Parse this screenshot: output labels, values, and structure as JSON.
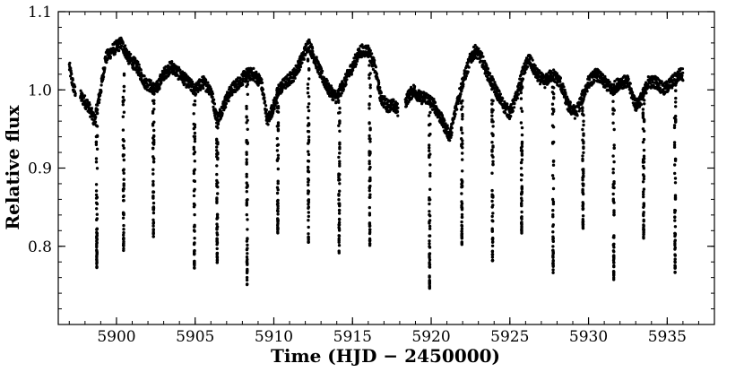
{
  "chart_data": {
    "type": "scatter",
    "title": "",
    "xlabel": "Time (HJD − 2450000)",
    "ylabel": "Relative flux",
    "xlim": [
      5896.3,
      5938.0
    ],
    "ylim": [
      0.7,
      1.1
    ],
    "x_ticks": [
      5900,
      5905,
      5910,
      5915,
      5920,
      5925,
      5930,
      5935
    ],
    "x_tick_labels": [
      "5900",
      "5905",
      "5910",
      "5915",
      "5920",
      "5925",
      "5930",
      "5935"
    ],
    "y_ticks": [
      0.8,
      0.9,
      1.0,
      1.1
    ],
    "y_tick_labels": [
      "0.8",
      "0.9",
      "1.0",
      "1.1"
    ],
    "grid": false,
    "marker_color": "#000000",
    "series": [
      {
        "baseline": [
          [
            5897.0,
            1.03
          ],
          [
            5897.3,
            1.0
          ],
          [
            5897.8,
            0.99
          ],
          [
            5898.2,
            0.98
          ],
          [
            5898.6,
            0.96
          ],
          [
            5899.0,
            1.0
          ],
          [
            5899.3,
            1.04
          ],
          [
            5899.7,
            1.05
          ],
          [
            5900.3,
            1.06
          ],
          [
            5900.8,
            1.04
          ],
          [
            5901.3,
            1.03
          ],
          [
            5901.8,
            1.01
          ],
          [
            5902.5,
            1.0
          ],
          [
            5903.0,
            1.02
          ],
          [
            5903.5,
            1.03
          ],
          [
            5904.0,
            1.02
          ],
          [
            5904.5,
            1.01
          ],
          [
            5905.0,
            1.0
          ],
          [
            5905.5,
            1.01
          ],
          [
            5906.0,
            1.0
          ],
          [
            5906.4,
            0.96
          ],
          [
            5906.8,
            0.98
          ],
          [
            5907.3,
            1.0
          ],
          [
            5907.8,
            1.01
          ],
          [
            5908.3,
            1.02
          ],
          [
            5908.7,
            1.02
          ],
          [
            5909.2,
            1.01
          ],
          [
            5909.6,
            0.96
          ],
          [
            5910.0,
            0.98
          ],
          [
            5910.3,
            1.0
          ],
          [
            5910.8,
            1.01
          ],
          [
            5911.3,
            1.02
          ],
          [
            5911.8,
            1.04
          ],
          [
            5912.2,
            1.06
          ],
          [
            5912.6,
            1.04
          ],
          [
            5913.0,
            1.02
          ],
          [
            5913.5,
            1.0
          ],
          [
            5914.0,
            0.99
          ],
          [
            5914.5,
            1.01
          ],
          [
            5915.0,
            1.03
          ],
          [
            5915.5,
            1.05
          ],
          [
            5916.0,
            1.05
          ],
          [
            5916.4,
            1.03
          ],
          [
            5916.8,
            0.99
          ],
          [
            5917.2,
            0.98
          ],
          [
            5917.6,
            0.98
          ],
          [
            5918.1,
            0.97
          ],
          [
            5918.5,
            0.99
          ],
          [
            5918.9,
            1.0
          ],
          [
            5919.3,
            0.99
          ],
          [
            5919.7,
            0.99
          ],
          [
            5920.2,
            0.98
          ],
          [
            5920.7,
            0.96
          ],
          [
            5921.2,
            0.94
          ],
          [
            5921.6,
            0.98
          ],
          [
            5922.0,
            1.01
          ],
          [
            5922.5,
            1.04
          ],
          [
            5922.8,
            1.05
          ],
          [
            5923.2,
            1.04
          ],
          [
            5923.6,
            1.02
          ],
          [
            5924.1,
            1.0
          ],
          [
            5924.6,
            0.98
          ],
          [
            5925.0,
            0.97
          ],
          [
            5925.4,
            0.99
          ],
          [
            5925.8,
            1.02
          ],
          [
            5926.2,
            1.04
          ],
          [
            5926.7,
            1.02
          ],
          [
            5927.2,
            1.01
          ],
          [
            5927.7,
            1.02
          ],
          [
            5928.2,
            1.01
          ],
          [
            5928.7,
            0.98
          ],
          [
            5929.2,
            0.97
          ],
          [
            5929.6,
            0.99
          ],
          [
            5930.0,
            1.01
          ],
          [
            5930.5,
            1.02
          ],
          [
            5931.0,
            1.01
          ],
          [
            5931.5,
            1.0
          ],
          [
            5932.0,
            1.01
          ],
          [
            5932.5,
            1.01
          ],
          [
            5933.0,
            0.98
          ],
          [
            5933.4,
            0.99
          ],
          [
            5933.8,
            1.01
          ],
          [
            5934.3,
            1.01
          ],
          [
            5934.8,
            1.0
          ],
          [
            5935.3,
            1.01
          ],
          [
            5935.8,
            1.02
          ]
        ],
        "baseline_scatter": 0.008,
        "gaps": [
          [
            5897.4,
            5897.7
          ],
          [
            5917.9,
            5918.35
          ]
        ],
        "eclipses": [
          {
            "center": 5898.75,
            "depth_min": 0.775
          },
          {
            "center": 5900.45,
            "depth_min": 0.795
          },
          {
            "center": 5902.35,
            "depth_min": 0.815
          },
          {
            "center": 5904.95,
            "depth_min": 0.775
          },
          {
            "center": 5906.4,
            "depth_min": 0.78
          },
          {
            "center": 5908.3,
            "depth_min": 0.755
          },
          {
            "center": 5910.25,
            "depth_min": 0.815
          },
          {
            "center": 5912.2,
            "depth_min": 0.805
          },
          {
            "center": 5914.15,
            "depth_min": 0.79
          },
          {
            "center": 5916.1,
            "depth_min": 0.805
          },
          {
            "center": 5919.9,
            "depth_min": 0.745
          },
          {
            "center": 5921.95,
            "depth_min": 0.805
          },
          {
            "center": 5923.9,
            "depth_min": 0.78
          },
          {
            "center": 5925.75,
            "depth_min": 0.82
          },
          {
            "center": 5927.75,
            "depth_min": 0.77
          },
          {
            "center": 5929.65,
            "depth_min": 0.825
          },
          {
            "center": 5931.6,
            "depth_min": 0.76
          },
          {
            "center": 5933.5,
            "depth_min": 0.81
          },
          {
            "center": 5935.5,
            "depth_min": 0.77
          }
        ]
      }
    ]
  }
}
